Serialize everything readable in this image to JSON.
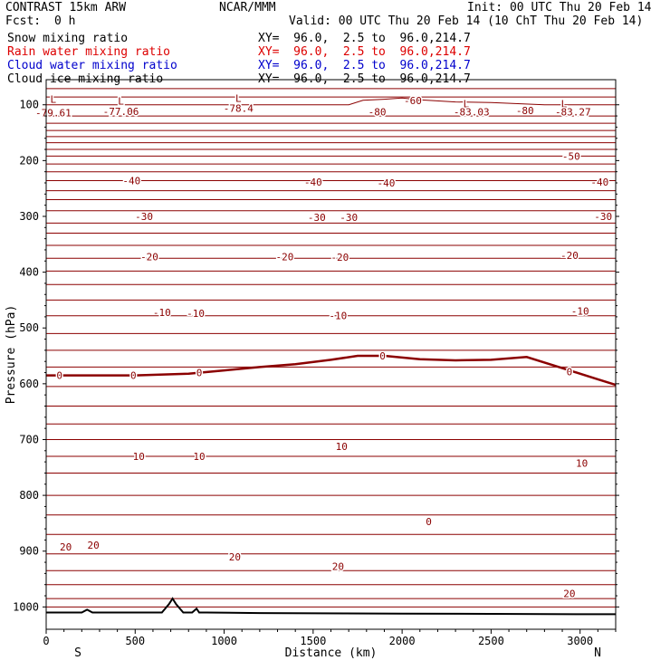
{
  "header": {
    "model": "CONTRAST 15km ARW",
    "center": "NCAR/MMM",
    "init": "Init: 00 UTC Thu 20 Feb 14",
    "fcst_label": "Fcst:",
    "fcst_value": "0 h",
    "valid": "Valid: 00 UTC Thu 20 Feb 14 (10 ChT Thu 20 Feb 14)"
  },
  "legend_rows": [
    {
      "label": "Snow mixing ratio",
      "xy": "XY=  96.0,  2.5 to  96.0,214.7",
      "color": "#000000"
    },
    {
      "label": "Rain water mixing ratio",
      "xy": "XY=  96.0,  2.5 to  96.0,214.7",
      "color": "#dd0000"
    },
    {
      "label": "Cloud water mixing ratio",
      "xy": "XY=  96.0,  2.5 to  96.0,214.7",
      "color": "#0000cc"
    },
    {
      "label": "Cloud ice mixing ratio",
      "xy": "XY=  96.0,  2.5 to  96.0,214.7",
      "color": "#000000"
    }
  ],
  "chart_data": {
    "type": "line",
    "xlabel": "Distance (km)",
    "ylabel": "Pressure (hPa)",
    "xlim": [
      0,
      3200
    ],
    "ylim": [
      1040,
      55
    ],
    "x_ticks": [
      0,
      500,
      1000,
      1500,
      2000,
      2500,
      3000
    ],
    "y_ticks": [
      100,
      200,
      300,
      400,
      500,
      600,
      700,
      800,
      900,
      1000
    ],
    "x_end_labels": {
      "left": "S",
      "right": "N"
    },
    "contour_color": "#8b0000",
    "series": [
      {
        "x": [
          0,
          3200
        ],
        "y": [
          71,
          71
        ]
      },
      {
        "x": [
          0,
          3200
        ],
        "y": [
          86,
          86
        ]
      },
      {
        "x": [
          0,
          1700,
          1780,
          1900,
          2000,
          2100,
          2300,
          2500,
          2800,
          3200
        ],
        "y": [
          100,
          100,
          92,
          90,
          88,
          91,
          95,
          96,
          100,
          100
        ]
      },
      {
        "x": [
          0,
          3200
        ],
        "y": [
          120,
          120
        ]
      },
      {
        "x": [
          0,
          3200
        ],
        "y": [
          133,
          133
        ]
      },
      {
        "x": [
          0,
          3200
        ],
        "y": [
          146,
          146
        ]
      },
      {
        "x": [
          0,
          3200
        ],
        "y": [
          157,
          157
        ]
      },
      {
        "x": [
          0,
          3200
        ],
        "y": [
          168,
          168
        ]
      },
      {
        "x": [
          0,
          3200
        ],
        "y": [
          180,
          180
        ]
      },
      {
        "x": [
          0,
          3200
        ],
        "y": [
          192,
          192
        ]
      },
      {
        "x": [
          0,
          3200
        ],
        "y": [
          206,
          206
        ]
      },
      {
        "x": [
          0,
          3200
        ],
        "y": [
          220,
          220
        ]
      },
      {
        "x": [
          0,
          3200
        ],
        "y": [
          236,
          236
        ]
      },
      {
        "x": [
          0,
          3200
        ],
        "y": [
          254,
          254
        ]
      },
      {
        "x": [
          0,
          3200
        ],
        "y": [
          270,
          270
        ]
      },
      {
        "x": [
          0,
          3200
        ],
        "y": [
          290,
          290
        ]
      },
      {
        "x": [
          0,
          3200
        ],
        "y": [
          312,
          312
        ]
      },
      {
        "x": [
          0,
          3200
        ],
        "y": [
          330,
          330
        ]
      },
      {
        "x": [
          0,
          3200
        ],
        "y": [
          352,
          352
        ]
      },
      {
        "x": [
          0,
          3200
        ],
        "y": [
          375,
          375
        ]
      },
      {
        "x": [
          0,
          3200
        ],
        "y": [
          398,
          398
        ]
      },
      {
        "x": [
          0,
          3200
        ],
        "y": [
          422,
          422
        ]
      },
      {
        "x": [
          0,
          3200
        ],
        "y": [
          450,
          450
        ]
      },
      {
        "x": [
          0,
          3200
        ],
        "y": [
          478,
          478
        ]
      },
      {
        "x": [
          0,
          3200
        ],
        "y": [
          510,
          510
        ]
      },
      {
        "x": [
          0,
          3200
        ],
        "y": [
          540,
          540
        ]
      },
      {
        "x": [
          0,
          3200
        ],
        "y": [
          570,
          570
        ]
      },
      {
        "x": [
          0,
          3200
        ],
        "y": [
          605,
          605
        ]
      },
      {
        "x": [
          0,
          3200
        ],
        "y": [
          640,
          640
        ]
      },
      {
        "x": [
          0,
          3200
        ],
        "y": [
          672,
          672
        ]
      },
      {
        "x": [
          0,
          3200
        ],
        "y": [
          700,
          700
        ]
      },
      {
        "x": [
          0,
          3200
        ],
        "y": [
          730,
          730
        ]
      },
      {
        "x": [
          0,
          3200
        ],
        "y": [
          760,
          760
        ]
      },
      {
        "x": [
          0,
          3200
        ],
        "y": [
          800,
          800
        ]
      },
      {
        "x": [
          0,
          3200
        ],
        "y": [
          835,
          835
        ]
      },
      {
        "x": [
          0,
          3200
        ],
        "y": [
          870,
          870
        ]
      },
      {
        "x": [
          0,
          3200
        ],
        "y": [
          905,
          905
        ]
      },
      {
        "x": [
          0,
          3200
        ],
        "y": [
          935,
          935
        ]
      },
      {
        "x": [
          0,
          3200
        ],
        "y": [
          960,
          960
        ]
      },
      {
        "x": [
          0,
          3200
        ],
        "y": [
          985,
          985
        ]
      },
      {
        "x": [
          0,
          3200
        ],
        "y": [
          1000,
          1000
        ]
      }
    ],
    "freezing_level": {
      "label": "0",
      "x": [
        0,
        500,
        800,
        1000,
        1200,
        1400,
        1600,
        1750,
        1900,
        2100,
        2300,
        2500,
        2700,
        2900,
        3100,
        3200
      ],
      "y": [
        585,
        585,
        582,
        576,
        570,
        565,
        557,
        550,
        550,
        556,
        558,
        557,
        552,
        572,
        592,
        602
      ]
    },
    "terrain": {
      "x": [
        0,
        200,
        230,
        260,
        400,
        650,
        690,
        710,
        730,
        770,
        820,
        845,
        860,
        900,
        1200,
        2000,
        3000,
        3200
      ],
      "y": [
        1010,
        1010,
        1005,
        1010,
        1010,
        1010,
        995,
        985,
        995,
        1010,
        1010,
        1003,
        1010,
        1010,
        1011,
        1012,
        1013,
        1013
      ]
    },
    "annotations": [
      {
        "text": "L",
        "x": 40,
        "y": 90
      },
      {
        "text": "-79.61",
        "x": 40,
        "y": 114
      },
      {
        "text": "L",
        "x": 420,
        "y": 93
      },
      {
        "text": "-77.06",
        "x": 420,
        "y": 112
      },
      {
        "text": "L",
        "x": 1080,
        "y": 88
      },
      {
        "text": "-78.4",
        "x": 1080,
        "y": 106
      },
      {
        "text": "-60",
        "x": 2060,
        "y": 92
      },
      {
        "text": "-80",
        "x": 1860,
        "y": 113
      },
      {
        "text": "L",
        "x": 2360,
        "y": 98
      },
      {
        "text": "-83.03",
        "x": 2390,
        "y": 113
      },
      {
        "text": "-80",
        "x": 2690,
        "y": 110
      },
      {
        "text": "L",
        "x": 2910,
        "y": 98
      },
      {
        "text": "-83.27",
        "x": 2960,
        "y": 113
      },
      {
        "text": "-50",
        "x": 2950,
        "y": 192
      },
      {
        "text": "-40",
        "x": 480,
        "y": 236
      },
      {
        "text": "-40",
        "x": 1500,
        "y": 238
      },
      {
        "text": "-40",
        "x": 1910,
        "y": 240
      },
      {
        "text": "-40",
        "x": 3110,
        "y": 238
      },
      {
        "text": "-30",
        "x": 550,
        "y": 300
      },
      {
        "text": "-30",
        "x": 1520,
        "y": 302
      },
      {
        "text": "-30",
        "x": 1700,
        "y": 302
      },
      {
        "text": "-30",
        "x": 3130,
        "y": 300
      },
      {
        "text": "-20",
        "x": 580,
        "y": 372
      },
      {
        "text": "-20",
        "x": 1340,
        "y": 372
      },
      {
        "text": "-20",
        "x": 1650,
        "y": 373
      },
      {
        "text": "-20",
        "x": 2940,
        "y": 370
      },
      {
        "text": "-10",
        "x": 650,
        "y": 472
      },
      {
        "text": "-10",
        "x": 840,
        "y": 474
      },
      {
        "text": "-10",
        "x": 1640,
        "y": 478
      },
      {
        "text": "-10",
        "x": 3000,
        "y": 470
      },
      {
        "text": "0",
        "x": 75,
        "y": 585
      },
      {
        "text": "0",
        "x": 490,
        "y": 585
      },
      {
        "text": "0",
        "x": 860,
        "y": 580
      },
      {
        "text": "0",
        "x": 1890,
        "y": 550
      },
      {
        "text": "0",
        "x": 2940,
        "y": 578
      },
      {
        "text": "10",
        "x": 520,
        "y": 730
      },
      {
        "text": "10",
        "x": 860,
        "y": 730
      },
      {
        "text": "10",
        "x": 1660,
        "y": 712
      },
      {
        "text": "10",
        "x": 3010,
        "y": 742
      },
      {
        "text": "0",
        "x": 2150,
        "y": 847
      },
      {
        "text": "20",
        "x": 110,
        "y": 892
      },
      {
        "text": "20",
        "x": 265,
        "y": 889
      },
      {
        "text": "20",
        "x": 1060,
        "y": 910
      },
      {
        "text": "20",
        "x": 1640,
        "y": 927
      },
      {
        "text": "20",
        "x": 2940,
        "y": 976
      }
    ]
  }
}
